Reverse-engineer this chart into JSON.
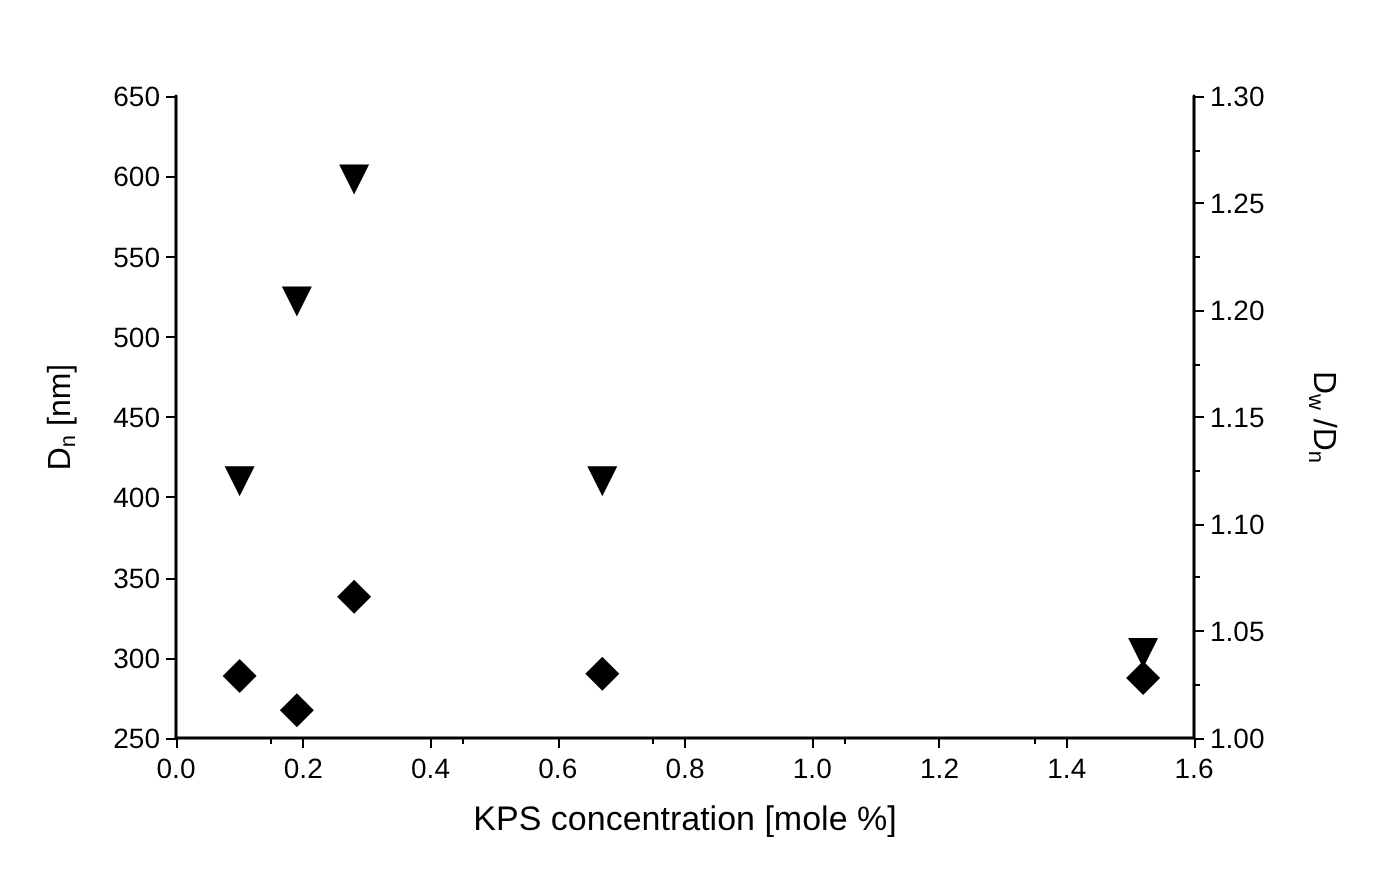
{
  "chart_data": {
    "type": "scatter",
    "xlabel": "KPS concentration [mole %]",
    "ylabel": "D$_{n}$ [nm]",
    "y2label": "D$_{w}$ /D$_{n}$",
    "xlim": [
      0,
      1.6
    ],
    "xticks": [
      {
        "value": 0,
        "label": "0.0"
      },
      0.2,
      0.4,
      0.6,
      0.8,
      {
        "value": 1,
        "label": "1.0"
      },
      1.2,
      1.4,
      1.6
    ],
    "ylim": [
      250,
      650
    ],
    "yticks": [
      250,
      300,
      350,
      400,
      450,
      500,
      550,
      600,
      650
    ],
    "y2lim": [
      1,
      1.3
    ],
    "y2ticks": [
      {
        "value": 1,
        "label": "1.00"
      },
      1.05,
      {
        "value": 1.1,
        "label": "1.10"
      },
      1.15,
      {
        "value": 1.2,
        "label": "1.20"
      },
      1.25,
      {
        "value": 1.3,
        "label": "1.30"
      }
    ],
    "series": [
      {
        "color": "#000000",
        "marker": "triangle",
        "x": [
          0.1,
          0.19,
          0.28,
          0.67,
          1.52
        ],
        "values": [
          410,
          522,
          598,
          410,
          303
        ]
      },
      {
        "color": "#000000",
        "marker": "diamond",
        "axis": "y2",
        "x": [
          0.1,
          0.19,
          0.28,
          0.67,
          1.52
        ],
        "values": [
          1.029,
          1.013,
          1.066,
          1.03,
          1.028
        ]
      }
    ]
  }
}
